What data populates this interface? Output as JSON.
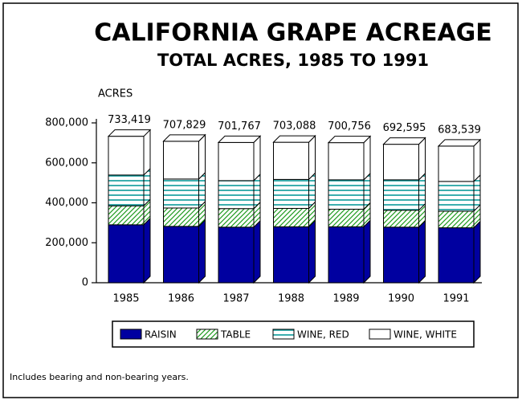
{
  "chart_data": {
    "type": "stacked-bar-3d",
    "title": "CALIFORNIA GRAPE ACREAGE",
    "subtitle": "TOTAL ACRES, 1985 TO 1991",
    "y_label": "ACRES",
    "footnote": "Includes bearing and non-bearing years.",
    "categories": [
      "1985",
      "1986",
      "1987",
      "1988",
      "1989",
      "1990",
      "1991"
    ],
    "series": [
      {
        "name": "RAISIN",
        "color": "#0000a0",
        "values": [
          290000,
          282000,
          278000,
          280000,
          280000,
          278000,
          275000
        ]
      },
      {
        "name": "TABLE",
        "color": "#1f9a1f",
        "values": [
          95000,
          92000,
          93000,
          92000,
          88000,
          85000,
          83000
        ]
      },
      {
        "name": "WINE, RED",
        "color": "#0a9a9a",
        "values": [
          154000,
          145000,
          140000,
          145000,
          147000,
          152000,
          149000
        ]
      },
      {
        "name": "WINE, WHITE",
        "color": "#ffffff",
        "values": [
          194000,
          189000,
          191000,
          186000,
          186000,
          178000,
          177000
        ]
      }
    ],
    "totals": [
      733419,
      707829,
      701767,
      703088,
      700756,
      692595,
      683539
    ],
    "value_labels": [
      "733,419",
      "707,829",
      "701,767",
      "703,088",
      "700,756",
      "692,595",
      "683,539"
    ],
    "ylim": [
      0,
      800000
    ],
    "yticks": [
      0,
      {
        "value": 200000,
        "label": "200,000"
      },
      {
        "value": 400000,
        "label": "400,000"
      },
      {
        "value": 600000,
        "label": "600,000"
      },
      {
        "value": 800000,
        "label": "800,000"
      }
    ],
    "legend": "bottom"
  }
}
